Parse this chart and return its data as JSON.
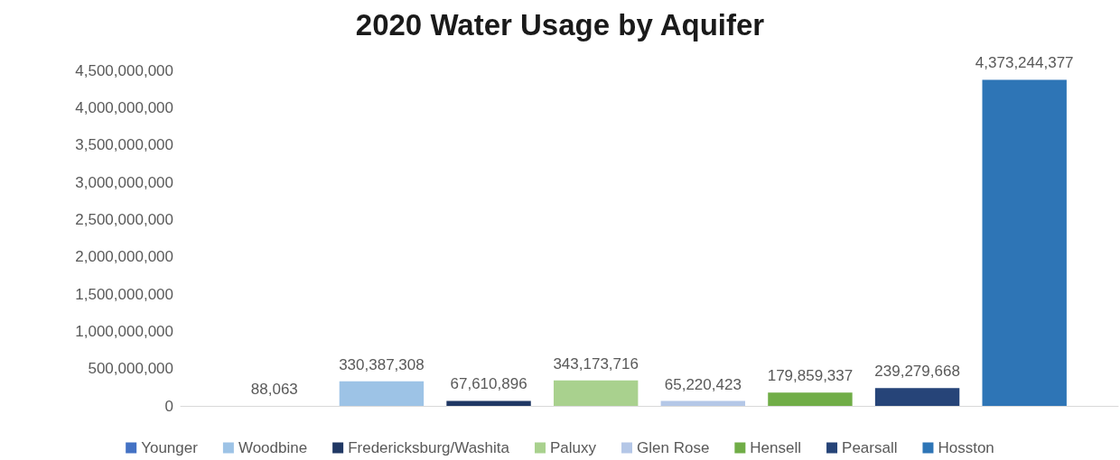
{
  "chart_data": {
    "type": "bar",
    "title": "2020 Water Usage by Aquifer",
    "categories": [
      null
    ],
    "series": [
      {
        "name": "Younger",
        "color": "#4472c4",
        "values": [
          88063
        ],
        "value_labels": [
          "88,063"
        ]
      },
      {
        "name": "Woodbine",
        "color": "#9dc3e6",
        "values": [
          330387308
        ],
        "value_labels": [
          "330,387,308"
        ]
      },
      {
        "name": "Fredericksburg/Washita",
        "color": "#203864",
        "values": [
          67610896
        ],
        "value_labels": [
          "67,610,896"
        ]
      },
      {
        "name": "Paluxy",
        "color": "#a9d18e",
        "values": [
          343173716
        ],
        "value_labels": [
          "343,173,716"
        ]
      },
      {
        "name": "Glen Rose",
        "color": "#b4c7e7",
        "values": [
          65220423
        ],
        "value_labels": [
          "65,220,423"
        ]
      },
      {
        "name": "Hensell",
        "color": "#70ad47",
        "values": [
          179859337
        ],
        "value_labels": [
          "179,859,337"
        ]
      },
      {
        "name": "Pearsall",
        "color": "#264478",
        "values": [
          239279668
        ],
        "value_labels": [
          "239,279,668"
        ]
      },
      {
        "name": "Hosston",
        "color": "#2e75b6",
        "values": [
          4373244377
        ],
        "value_labels": [
          "4,373,244,377"
        ]
      }
    ],
    "ylim": [
      0,
      4500000000
    ],
    "yticks": [
      0,
      {
        "value": 500000000,
        "label": "500,000,000"
      },
      {
        "value": 1000000000,
        "label": "1,000,000,000"
      },
      {
        "value": 1500000000,
        "label": "1,500,000,000"
      },
      {
        "value": 2000000000,
        "label": "2,000,000,000"
      },
      {
        "value": 2500000000,
        "label": "2,500,000,000"
      },
      {
        "value": 3000000000,
        "label": "3,000,000,000"
      },
      {
        "value": 3500000000,
        "label": "3,500,000,000"
      },
      {
        "value": 4000000000,
        "label": "4,000,000,000"
      },
      {
        "value": 4500000000,
        "label": "4,500,000,000"
      }
    ],
    "grid": false,
    "legend": "bottom"
  }
}
